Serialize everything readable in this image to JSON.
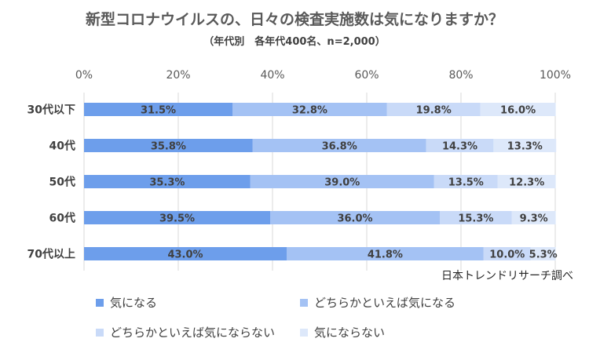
{
  "chart_data": {
    "type": "bar",
    "orientation": "horizontal",
    "stacked": true,
    "title": "新型コロナウイルスの、日々の検査実施数は気になりますか？",
    "subtitle": "（年代別　各年代400名、n=2,000）",
    "categories": [
      "30代以下",
      "40代",
      "50代",
      "60代",
      "70代以上"
    ],
    "series": [
      {
        "name": "気になる",
        "color": "#6d9eeb",
        "values": [
          31.5,
          35.8,
          35.3,
          39.5,
          43.0
        ]
      },
      {
        "name": "どちらかといえば気になる",
        "color": "#a4c2f4",
        "values": [
          32.8,
          36.8,
          39.0,
          36.0,
          41.8
        ]
      },
      {
        "name": "どちらかといえば気にならない",
        "color": "#c9daf8",
        "values": [
          19.8,
          14.3,
          13.5,
          15.3,
          10.0
        ]
      },
      {
        "name": "気にならない",
        "color": "#dde8fa",
        "values": [
          16.0,
          13.3,
          12.3,
          9.3,
          5.3
        ]
      }
    ],
    "xlim": [
      0,
      100
    ],
    "xticks": [
      "0%",
      "20%",
      "40%",
      "60%",
      "80%",
      "100%"
    ],
    "data_label_suffix": "%",
    "legend_position": "bottom",
    "grid": true
  },
  "source": "日本トレンドリサーチ調べ"
}
